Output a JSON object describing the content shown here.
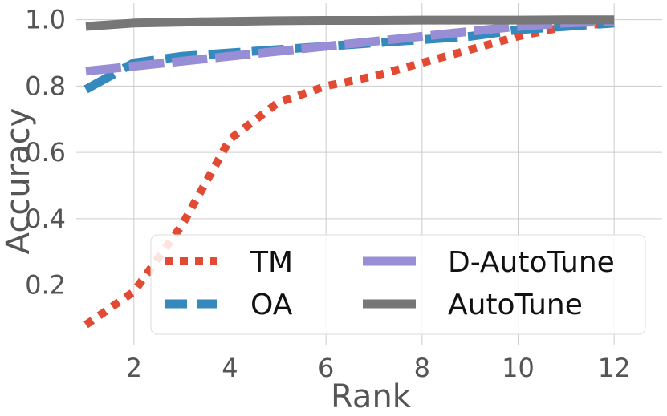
{
  "chart_data": {
    "type": "line",
    "title": "",
    "xlabel": "Rank",
    "ylabel": "Accuracy",
    "xlim": [
      0.8,
      13.0
    ],
    "ylim": [
      0.02,
      1.05
    ],
    "grid": true,
    "xticks": [
      2,
      4,
      6,
      8,
      10,
      12
    ],
    "yticks": [
      0.2,
      0.4,
      0.6,
      0.8,
      1.0
    ],
    "x": [
      1,
      2,
      3,
      4,
      5,
      6,
      7,
      8,
      9,
      10,
      11,
      12
    ],
    "legend_position": "lower-right",
    "legend_columns": 2,
    "series": [
      {
        "name": "TM",
        "style": "dotted",
        "color": "#E24A33",
        "values": [
          0.08,
          0.18,
          0.38,
          0.64,
          0.75,
          0.8,
          0.83,
          0.87,
          0.91,
          0.95,
          0.98,
          0.99
        ]
      },
      {
        "name": "OA",
        "style": "dashed",
        "color": "#348ABD",
        "values": [
          0.79,
          0.87,
          0.89,
          0.9,
          0.91,
          0.92,
          0.93,
          0.94,
          0.95,
          0.97,
          0.98,
          0.99
        ]
      },
      {
        "name": "D-AutoTune",
        "style": "dashdot",
        "color": "#988ED5",
        "values": [
          0.845,
          0.86,
          0.875,
          0.89,
          0.905,
          0.92,
          0.935,
          0.95,
          0.965,
          0.98,
          0.99,
          0.995
        ]
      },
      {
        "name": "AutoTune",
        "style": "solid",
        "color": "#777777",
        "values": [
          0.98,
          0.99,
          0.993,
          0.995,
          0.997,
          0.998,
          0.998,
          0.999,
          0.999,
          0.999,
          1.0,
          1.0
        ]
      }
    ]
  }
}
